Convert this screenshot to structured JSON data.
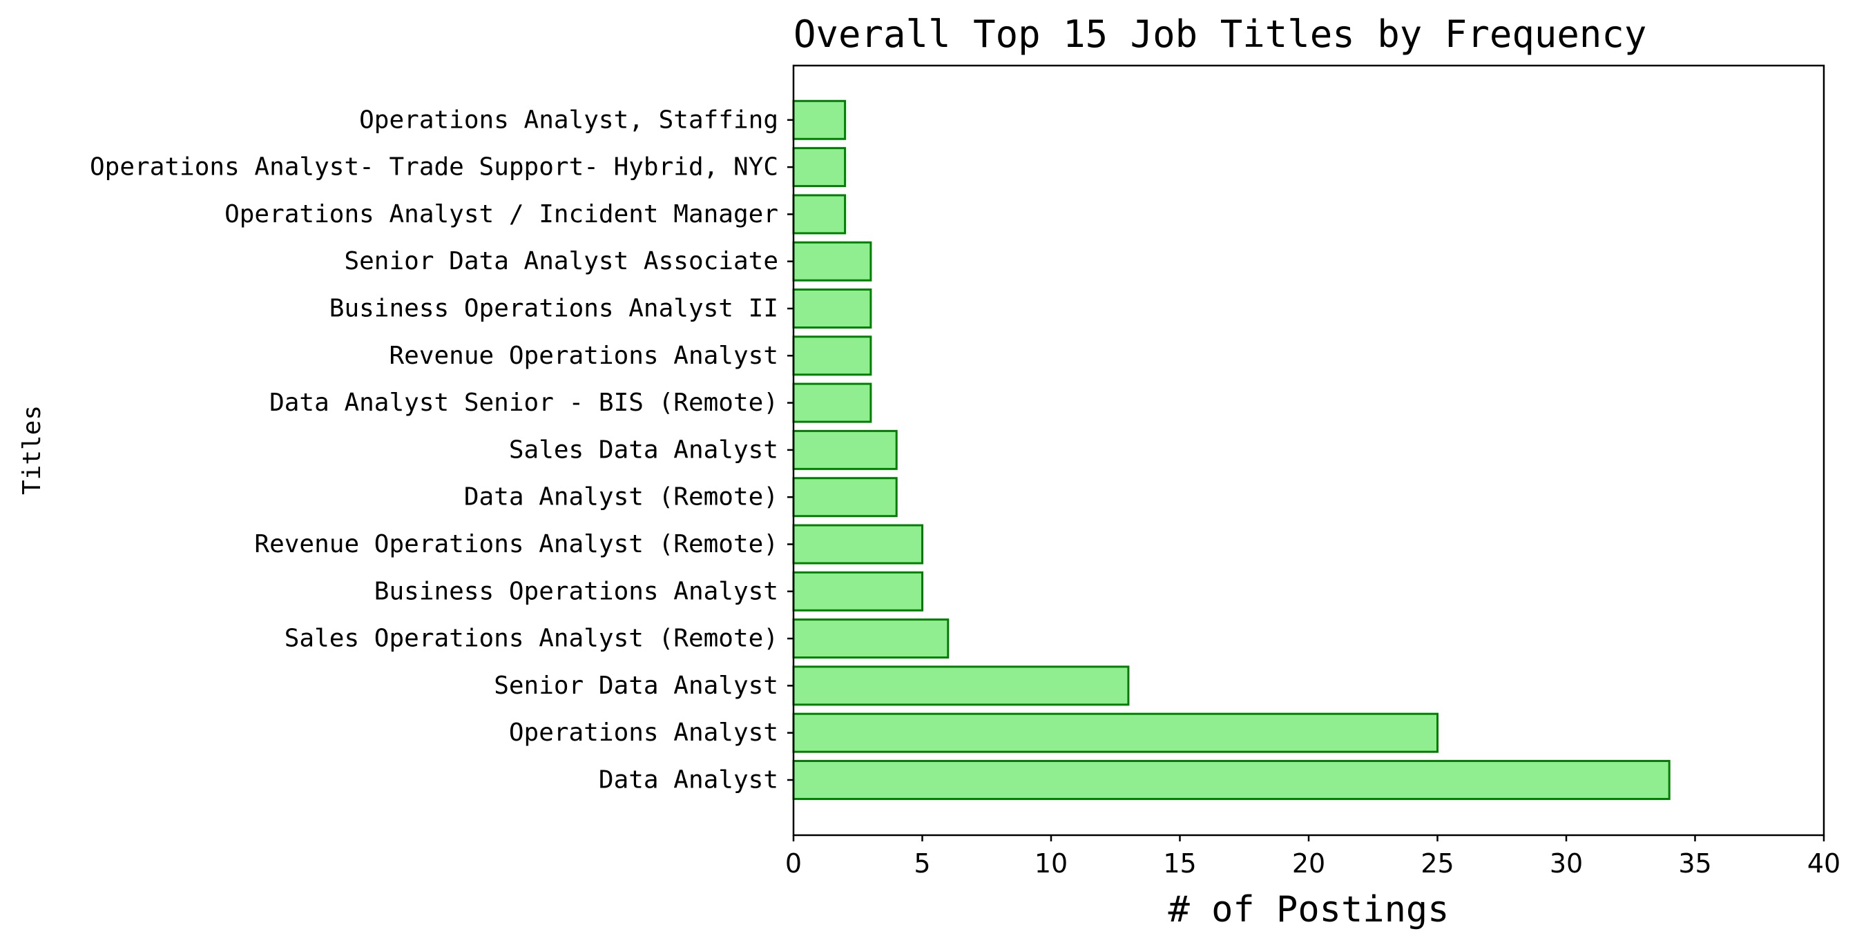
{
  "chart_data": {
    "type": "bar",
    "orientation": "horizontal",
    "title": "Overall Top 15 Job Titles by Frequency",
    "xlabel": "# of Postings",
    "ylabel": "Titles",
    "xlim": [
      0,
      40
    ],
    "xticks": [
      0,
      5,
      10,
      15,
      20,
      25,
      30,
      35,
      40
    ],
    "categories": [
      "Data Analyst",
      "Operations Analyst",
      "Senior Data Analyst",
      "Sales Operations Analyst (Remote)",
      "Business Operations Analyst",
      "Revenue Operations Analyst (Remote)",
      "Data Analyst (Remote)",
      "Sales Data Analyst",
      "Data Analyst Senior - BIS (Remote)",
      "Revenue Operations Analyst",
      "Business Operations Analyst II",
      "Senior Data Analyst Associate",
      "Operations Analyst / Incident Manager",
      "Operations Analyst- Trade Support- Hybrid, NYC",
      "Operations Analyst, Staffing"
    ],
    "values": [
      34,
      25,
      13,
      6,
      5,
      5,
      4,
      4,
      3,
      3,
      3,
      3,
      2,
      2,
      2
    ],
    "grid": false,
    "bar_fill_color": "#90ee90",
    "bar_edge_color": "#008000"
  }
}
